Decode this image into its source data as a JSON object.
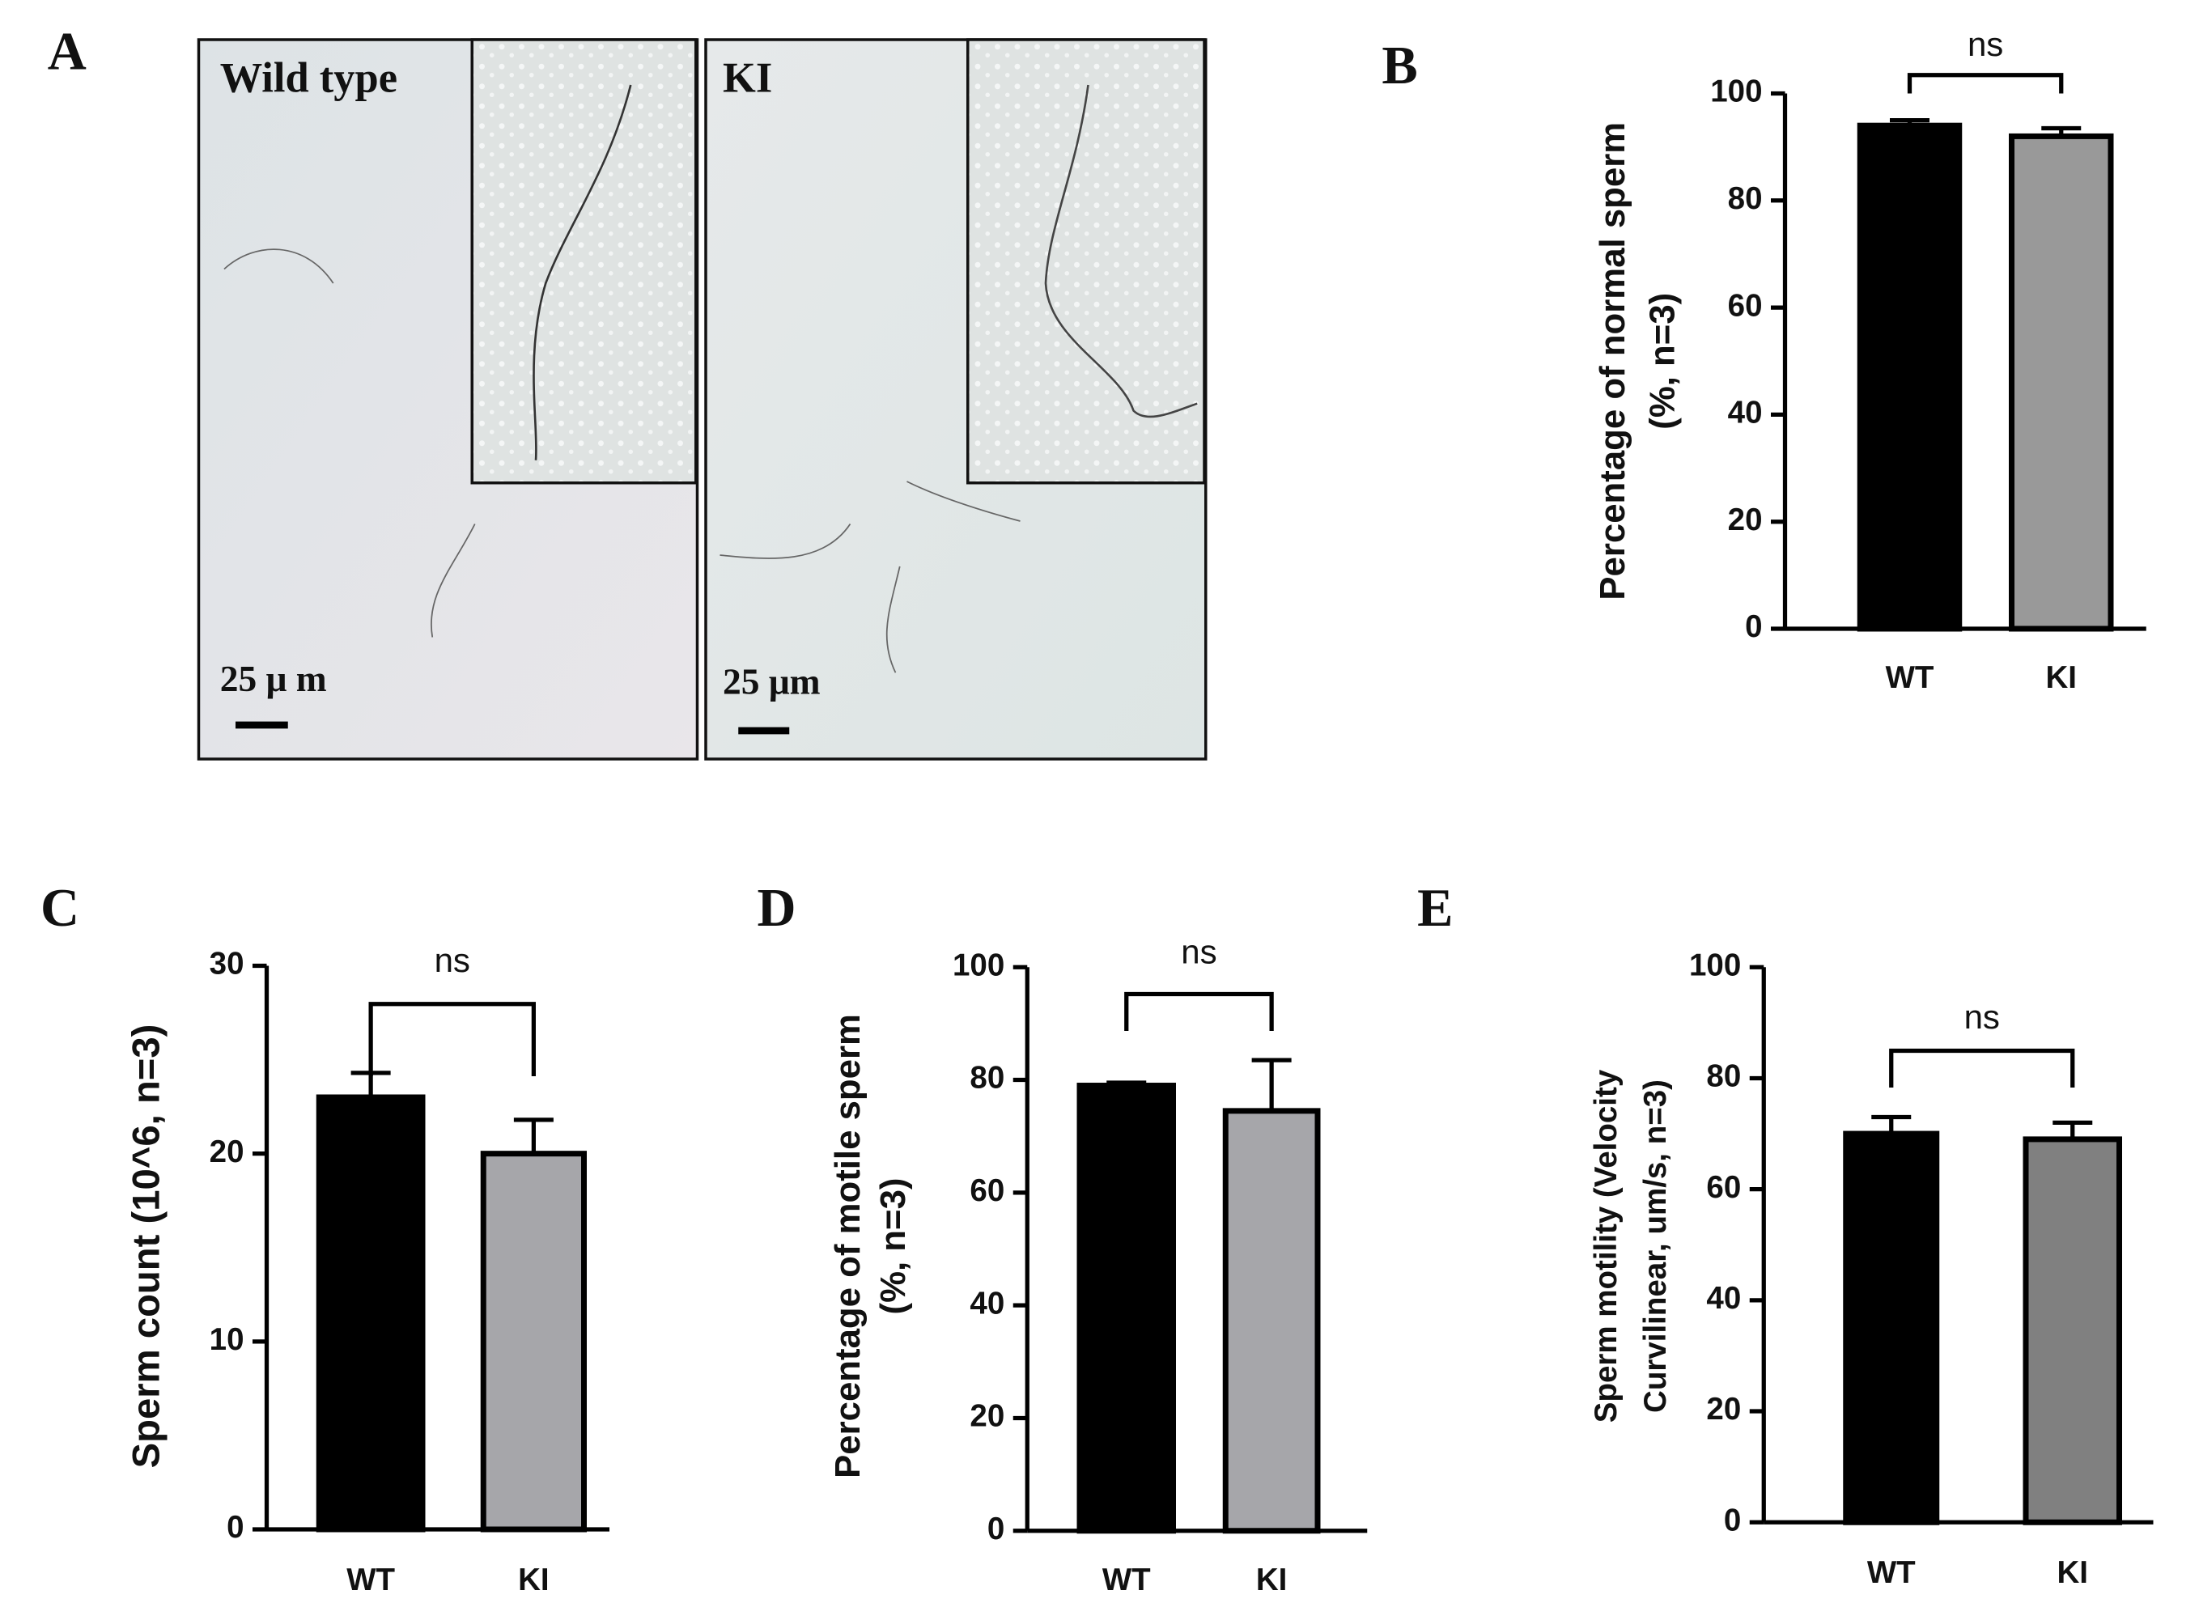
{
  "micrographs": {
    "label": "A",
    "left_title": "Wild type",
    "right_title": "KI",
    "left_scale": "25 μ m",
    "right_scale": "25 μm"
  },
  "chart_data": [
    {
      "type": "bar",
      "label": "B",
      "ylabel": [
        "Percentage of normal sperm",
        "(%, n=3)"
      ],
      "categories": [
        "WT",
        "KI"
      ],
      "values": [
        94,
        92
      ],
      "errors": [
        1,
        1.5
      ],
      "colors": [
        "#000000",
        "#999999"
      ],
      "ylim": [
        0,
        100
      ],
      "yticks": [
        0,
        20,
        40,
        60,
        80,
        100
      ],
      "annotation": "ns"
    },
    {
      "type": "bar",
      "label": "C",
      "ylabel": [
        "Sperm count (10^6, n=3)"
      ],
      "categories": [
        "WT",
        "KI"
      ],
      "values": [
        23,
        20
      ],
      "errors": [
        1.3,
        1.8
      ],
      "colors": [
        "#000000",
        "#a6a6aa"
      ],
      "ylim": [
        0,
        30
      ],
      "yticks": [
        0,
        10,
        20,
        30
      ],
      "annotation": "ns"
    },
    {
      "type": "bar",
      "label": "D",
      "ylabel": [
        "Percentage of motile sperm",
        "(%, n=3)"
      ],
      "categories": [
        "WT",
        "KI"
      ],
      "values": [
        79,
        74.5
      ],
      "errors": [
        0.5,
        9
      ],
      "colors": [
        "#000000",
        "#a6a6aa"
      ],
      "ylim": [
        0,
        100
      ],
      "yticks": [
        0,
        20,
        40,
        60,
        80,
        100
      ],
      "annotation": "ns"
    },
    {
      "type": "bar",
      "label": "E",
      "ylabel": [
        "Sperm motility (Velocity",
        "Curvilinear, um/s, n=3)"
      ],
      "categories": [
        "WT",
        "KI"
      ],
      "values": [
        70,
        69
      ],
      "errors": [
        3,
        3
      ],
      "colors": [
        "#000000",
        "#808080"
      ],
      "ylim": [
        0,
        100
      ],
      "yticks": [
        0,
        20,
        40,
        60,
        80,
        100
      ],
      "annotation": "ns"
    }
  ]
}
